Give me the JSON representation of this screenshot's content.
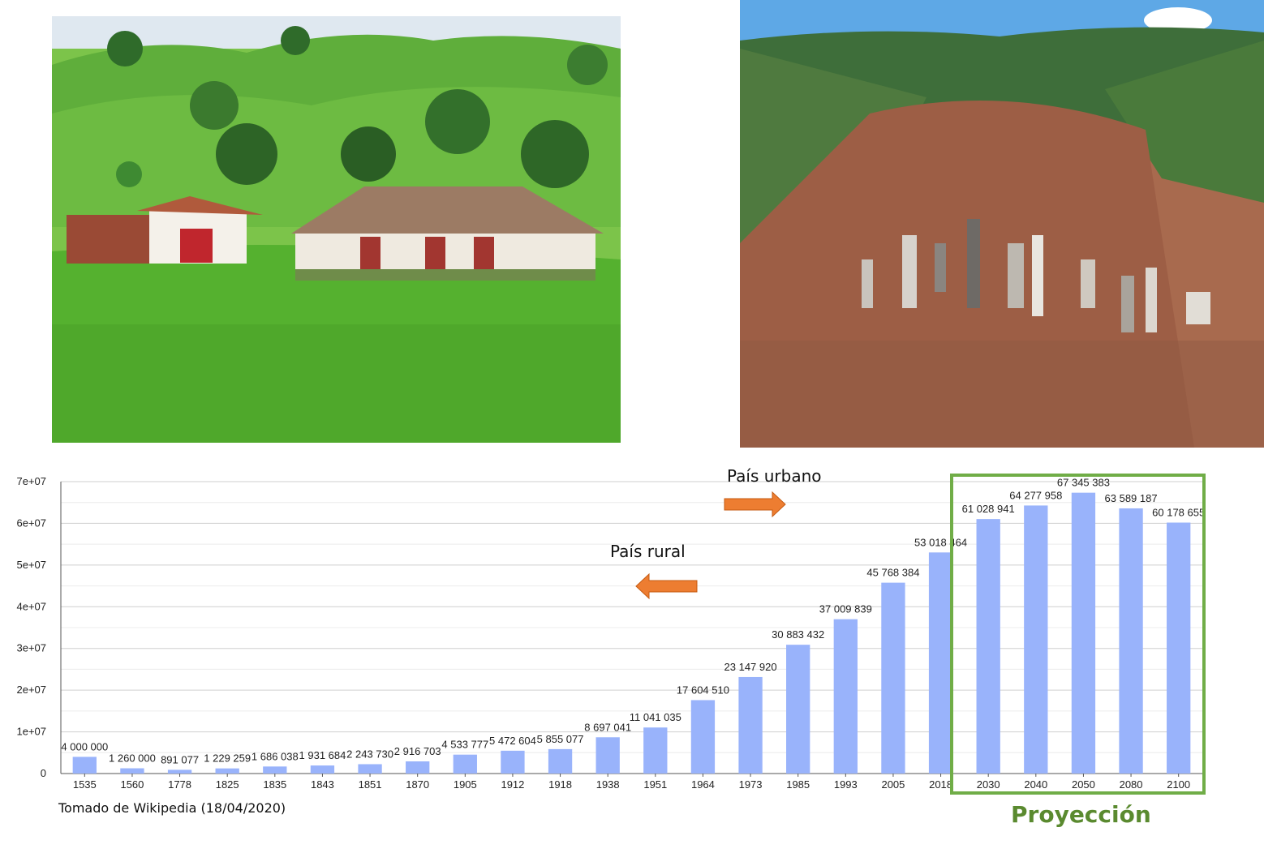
{
  "chart_data": {
    "type": "bar",
    "categories": [
      "1535",
      "1560",
      "1778",
      "1825",
      "1835",
      "1843",
      "1851",
      "1870",
      "1905",
      "1912",
      "1918",
      "1938",
      "1951",
      "1964",
      "1973",
      "1985",
      "1993",
      "2005",
      "2018",
      "2030",
      "2040",
      "2050",
      "2080",
      "2100"
    ],
    "values": [
      4000000,
      1260000,
      891077,
      1229259,
      1686038,
      1931684,
      2243730,
      2916703,
      4533777,
      5472604,
      5855077,
      8697041,
      11041035,
      17604510,
      23147920,
      30883432,
      37009839,
      45768384,
      53018464,
      61028941,
      64277958,
      67345383,
      63589187,
      60178655
    ],
    "data_labels": [
      "4 000 000",
      "1 260 000",
      "891 077",
      "1 229 259",
      "1 686 038",
      "1 931 684",
      "2 243 730",
      "2 916 703",
      "4 533 777",
      "5 472 604",
      "5 855 077",
      "8 697 041",
      "11 041 035",
      "17 604 510",
      "23 147 920",
      "30 883 432",
      "37 009 839",
      "45 768 384",
      "53 018 464",
      "61 028 941",
      "64 277 958",
      "67 345 383",
      "63 589 187",
      "60 178 655"
    ],
    "y_ticks": [
      "0",
      "1e+07",
      "2e+07",
      "3e+07",
      "4e+07",
      "5e+07",
      "6e+07",
      "7e+07"
    ],
    "ylim": [
      0,
      70000000
    ],
    "title": "",
    "xlabel": "",
    "ylabel": "",
    "grid": true,
    "bar_color": "#99b3fb",
    "annotations": {
      "urban": "País urbano",
      "rural": "País rural",
      "projection": "Proyección"
    },
    "projection_categories": [
      "2030",
      "2040",
      "2050",
      "2080",
      "2100"
    ],
    "projection_box_color": "#70ad47",
    "arrow_color": "#ed7d31"
  },
  "source_note": "Tomado de Wikipedia (18/04/2020)"
}
